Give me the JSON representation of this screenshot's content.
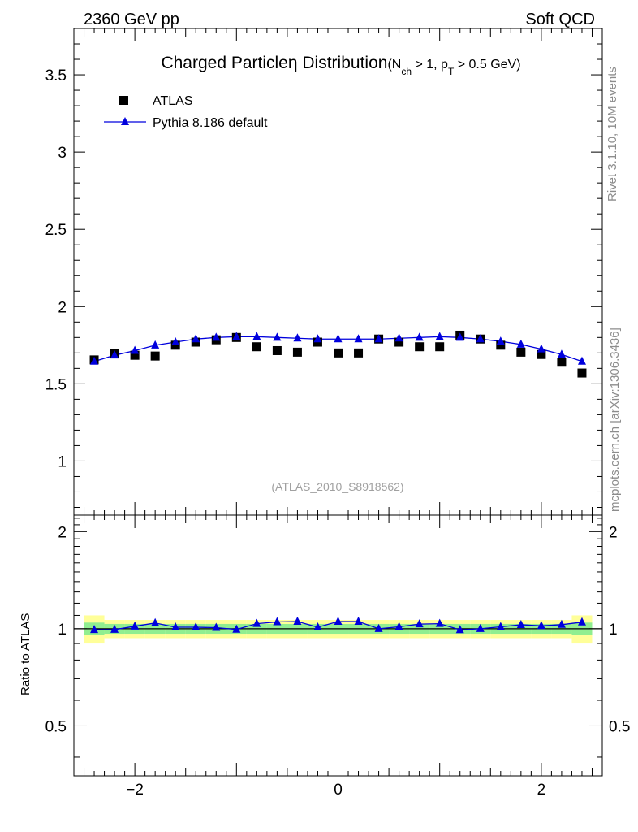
{
  "header": {
    "left": "2360 GeV pp",
    "right": "Soft QCD"
  },
  "side_labels": {
    "rivet": "Rivet 3.1.10,  10M events",
    "mcplots": "mcplots.cern.ch [arXiv:1306.3436]"
  },
  "chart_data": [
    {
      "type": "scatter",
      "title_main": "Charged Particle",
      "title_symbol": "η",
      "title_rest": " Distribution",
      "title_condition": "(N",
      "title_condition_sub1": "ch",
      "title_condition_mid": " > 1, p",
      "title_condition_sub2": "T",
      "title_condition_end": " > 0.5 GeV)",
      "annotation": "(ATLAS_2010_S8918562)",
      "xlim": [
        -2.6,
        2.6
      ],
      "ylim": [
        0.65,
        3.8
      ],
      "y_ticks": [
        1,
        1.5,
        2,
        2.5,
        3,
        3.5
      ],
      "y_tick_labels": [
        "1",
        "1.5",
        "2",
        "2.5",
        "3",
        "3.5"
      ],
      "x": [
        -2.4,
        -2.2,
        -2.0,
        -1.8,
        -1.6,
        -1.4,
        -1.2,
        -1.0,
        -0.8,
        -0.6,
        -0.4,
        -0.2,
        0.0,
        0.2,
        0.4,
        0.6,
        0.8,
        1.0,
        1.2,
        1.4,
        1.6,
        1.8,
        2.0,
        2.2,
        2.4
      ],
      "series": [
        {
          "name": "ATLAS",
          "marker": "square",
          "color": "#000000",
          "values": [
            1.655,
            1.695,
            1.685,
            1.68,
            1.75,
            1.77,
            1.785,
            1.8,
            1.74,
            1.715,
            1.705,
            1.77,
            1.7,
            1.7,
            1.79,
            1.77,
            1.74,
            1.74,
            1.815,
            1.79,
            1.75,
            1.705,
            1.69,
            1.64,
            1.57
          ]
        },
        {
          "name": "Pythia 8.186 default",
          "marker": "triangle",
          "color": "#0000dd",
          "values": [
            1.645,
            1.685,
            1.715,
            1.75,
            1.77,
            1.79,
            1.8,
            1.805,
            1.805,
            1.8,
            1.795,
            1.79,
            1.79,
            1.79,
            1.79,
            1.795,
            1.8,
            1.805,
            1.8,
            1.79,
            1.775,
            1.755,
            1.725,
            1.69,
            1.645
          ]
        }
      ]
    },
    {
      "type": "scatter",
      "ylabel": "Ratio to ATLAS",
      "xlim": [
        -2.6,
        2.6
      ],
      "ylim": [
        0.35,
        2.25
      ],
      "x_ticks": [
        -2,
        0,
        2
      ],
      "x_tick_labels": [
        "−2",
        "0",
        "2"
      ],
      "y_ticks": [
        0.5,
        1,
        2
      ],
      "y_tick_labels": [
        "0.5",
        "1",
        "2"
      ],
      "x": [
        -2.4,
        -2.2,
        -2.0,
        -1.8,
        -1.6,
        -1.4,
        -1.2,
        -1.0,
        -0.8,
        -0.6,
        -0.4,
        -0.2,
        0.0,
        0.2,
        0.4,
        0.6,
        0.8,
        1.0,
        1.2,
        1.4,
        1.6,
        1.8,
        2.0,
        2.2,
        2.4
      ],
      "series": [
        {
          "name": "Pythia 8.186 default / ATLAS",
          "color": "#0000dd",
          "values": [
            0.993,
            0.994,
            1.018,
            1.042,
            1.011,
            1.011,
            1.008,
            0.995,
            1.037,
            1.05,
            1.053,
            1.011,
            1.053,
            1.053,
            1.0,
            1.014,
            1.034,
            1.037,
            0.992,
            1.0,
            1.014,
            1.029,
            1.021,
            1.03,
            1.048
          ]
        }
      ],
      "bands": {
        "stat_color": "#90ee90",
        "syst_color": "#ffff99",
        "stat_halfwidth": [
          0.045,
          0.035,
          0.035,
          0.035,
          0.035,
          0.035,
          0.035,
          0.035,
          0.035,
          0.035,
          0.035,
          0.035,
          0.035,
          0.035,
          0.035,
          0.035,
          0.035,
          0.035,
          0.035,
          0.035,
          0.035,
          0.035,
          0.035,
          0.035,
          0.045
        ],
        "syst_halfwidth": [
          0.1,
          0.065,
          0.065,
          0.065,
          0.065,
          0.065,
          0.065,
          0.065,
          0.065,
          0.065,
          0.065,
          0.065,
          0.065,
          0.065,
          0.065,
          0.065,
          0.065,
          0.065,
          0.065,
          0.065,
          0.065,
          0.065,
          0.065,
          0.065,
          0.1
        ]
      }
    }
  ]
}
